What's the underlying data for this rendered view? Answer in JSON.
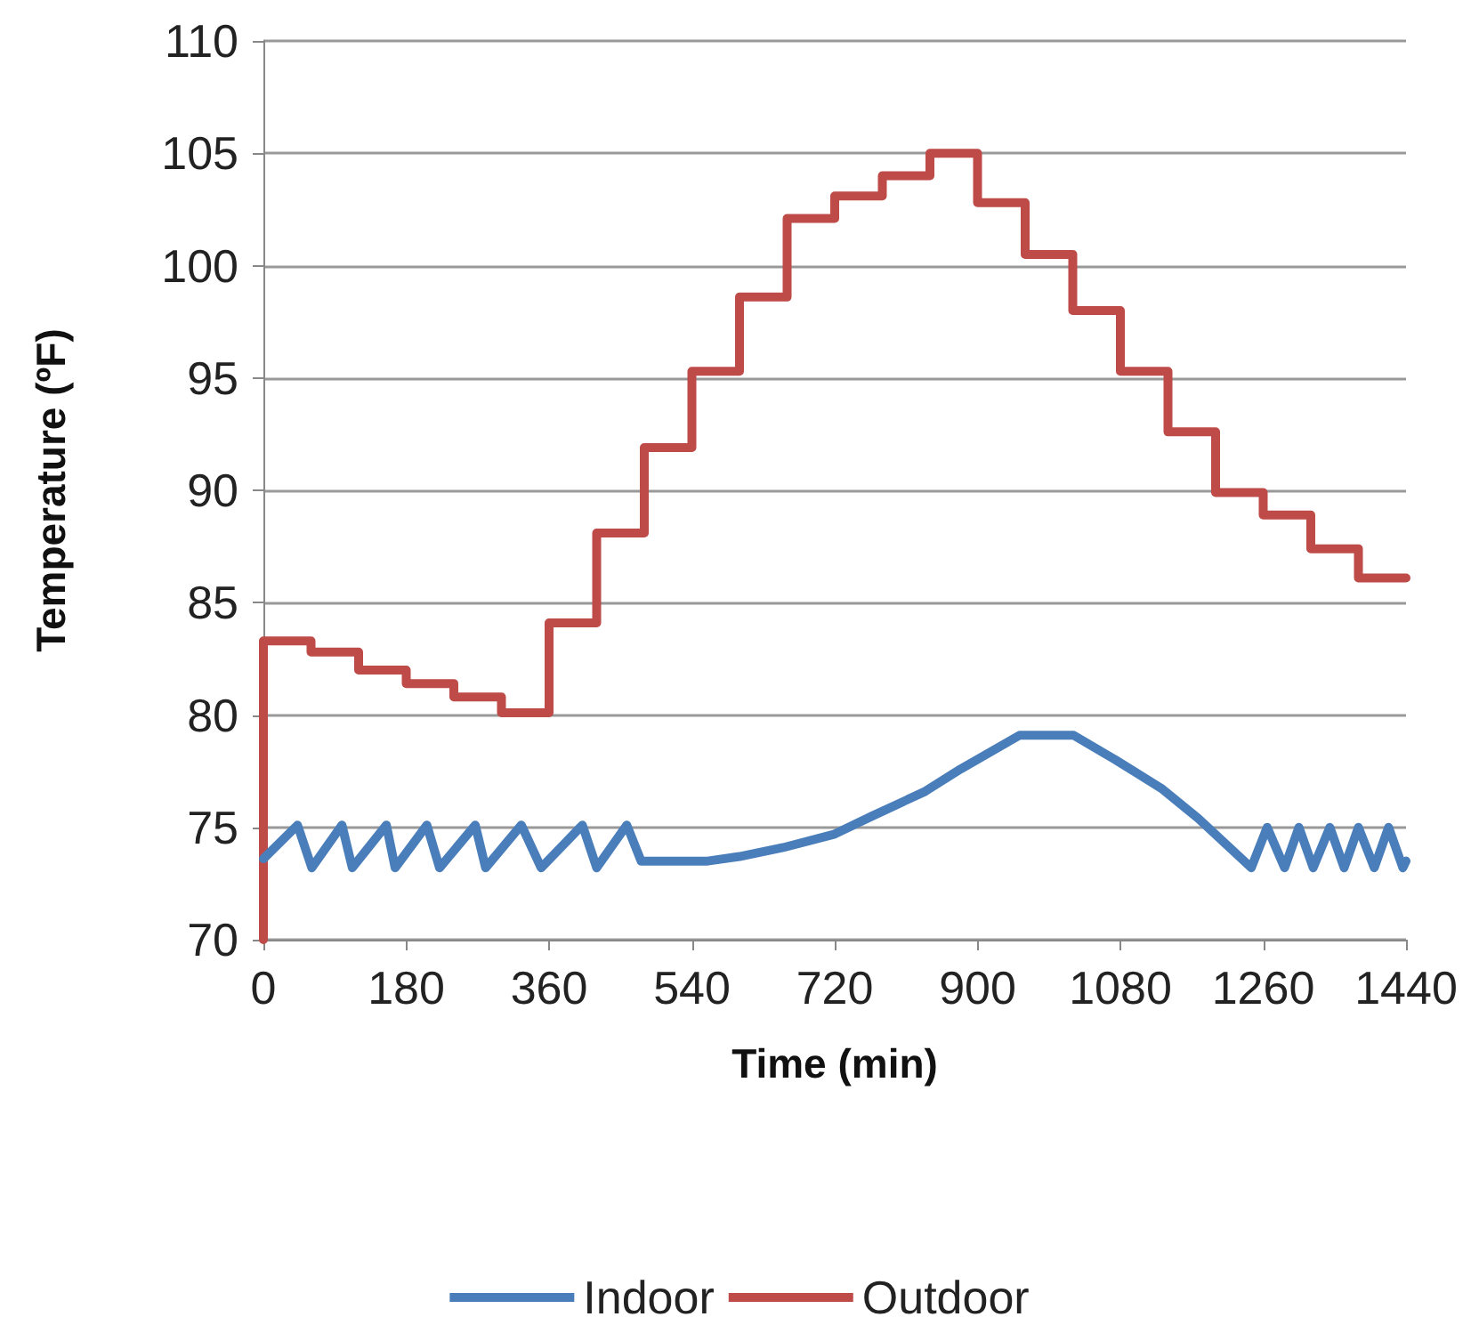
{
  "chart_data": {
    "type": "line",
    "xlabel": "Time (min)",
    "ylabel": "Temperature (ºF)",
    "xlim": [
      0,
      1440
    ],
    "xticks": [
      0,
      180,
      360,
      540,
      720,
      900,
      1080,
      1260,
      1440
    ],
    "ylim": [
      70,
      110
    ],
    "yticks": [
      70,
      75,
      80,
      85,
      90,
      95,
      100,
      105,
      110
    ],
    "grid": "y",
    "legend": "bottom",
    "marker": "none",
    "line_style": "solid",
    "series": [
      {
        "name": "Indoor",
        "color": "#4a7ebb",
        "x": [
          0,
          43,
          61,
          99,
          112,
          155,
          166,
          206,
          222,
          267,
          280,
          325,
          350,
          402,
          420,
          458,
          476,
          520,
          560,
          600,
          655,
          720,
          767,
          834,
          879,
          953,
          1021,
          1074,
          1133,
          1178,
          1245,
          1265,
          1287,
          1305,
          1323,
          1344,
          1362,
          1380,
          1400,
          1418,
          1436,
          1440
        ],
        "values": [
          73.6,
          75.1,
          73.2,
          75.1,
          73.2,
          75.1,
          73.2,
          75.1,
          73.2,
          75.1,
          73.2,
          75.1,
          73.2,
          75.1,
          73.2,
          75.1,
          73.5,
          73.5,
          73.5,
          73.7,
          74.1,
          74.7,
          75.5,
          76.6,
          77.6,
          79.1,
          79.1,
          78.0,
          76.7,
          75.4,
          73.2,
          75.0,
          73.2,
          75.0,
          73.2,
          75.0,
          73.2,
          75.0,
          73.2,
          75.0,
          73.2,
          73.5
        ]
      },
      {
        "name": "Outdoor",
        "color": "#be4b48",
        "type": "step",
        "x": [
          0,
          0,
          60,
          120,
          180,
          240,
          300,
          360,
          420,
          480,
          540,
          600,
          660,
          720,
          780,
          840,
          900,
          960,
          1020,
          1080,
          1140,
          1200,
          1260,
          1320,
          1380,
          1440
        ],
        "values": [
          70,
          83.3,
          82.8,
          82.0,
          81.4,
          80.8,
          80.1,
          84.1,
          88.1,
          91.9,
          95.3,
          98.6,
          102.1,
          103.1,
          104.0,
          105.0,
          102.8,
          100.5,
          98.0,
          95.3,
          92.6,
          89.9,
          88.9,
          87.4,
          86.1,
          86.1
        ]
      }
    ]
  }
}
